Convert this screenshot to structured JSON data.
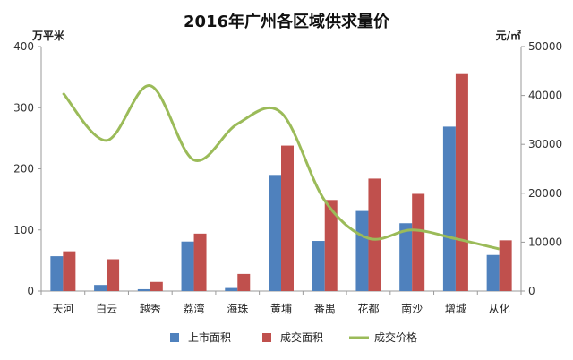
{
  "chart_data": {
    "type": "bar",
    "title": "2016年广州各区域供求量价",
    "left_unit": "万平米",
    "right_unit": "元/㎡",
    "categories": [
      "天河",
      "白云",
      "越秀",
      "荔湾",
      "海珠",
      "黄埔",
      "番禺",
      "花都",
      "南沙",
      "增城",
      "从化"
    ],
    "series": [
      {
        "name": "上市面积",
        "type": "bar",
        "axis": "left",
        "color": "#4f81bd",
        "values": [
          57,
          10,
          3,
          81,
          5,
          190,
          82,
          131,
          111,
          269,
          59
        ]
      },
      {
        "name": "成交面积",
        "type": "bar",
        "axis": "left",
        "color": "#c0504d",
        "values": [
          65,
          52,
          15,
          94,
          28,
          238,
          149,
          184,
          159,
          355,
          83
        ]
      },
      {
        "name": "成交价格",
        "type": "line",
        "axis": "right",
        "color": "#9bbb59",
        "values": [
          40500,
          30800,
          42000,
          26800,
          34200,
          36500,
          18500,
          10800,
          12500,
          10700,
          8600
        ]
      }
    ],
    "y_left": {
      "ylim": [
        0,
        400
      ],
      "ticks": [
        "0",
        "100",
        "200",
        "300",
        "400"
      ]
    },
    "y_right": {
      "ylim": [
        0,
        50000
      ],
      "ticks": [
        "0",
        "10000",
        "20000",
        "30000",
        "40000",
        "50000"
      ]
    },
    "grid": false,
    "legend_position": "bottom"
  }
}
